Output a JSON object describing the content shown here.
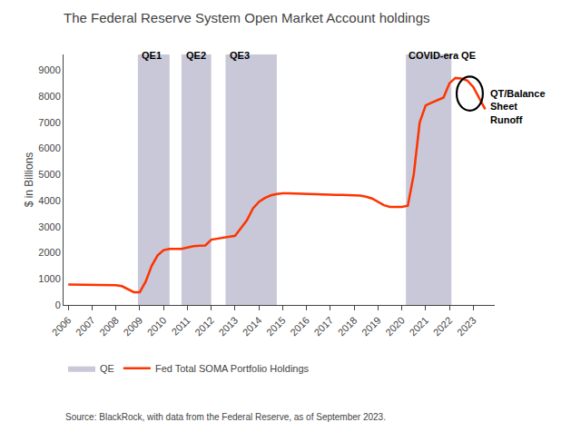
{
  "chart_data": {
    "type": "line",
    "title": "The Federal Reserve System Open Market Account holdings",
    "ylabel": "$ in Billions",
    "source": "Source: BlackRock, with data from the Federal Reserve, as of September 2023.",
    "x": [
      2006.0,
      2006.25,
      2006.5,
      2006.75,
      2007.0,
      2007.25,
      2007.5,
      2007.75,
      2008.0,
      2008.25,
      2008.5,
      2008.75,
      2009.0,
      2009.25,
      2009.5,
      2009.75,
      2010.0,
      2010.25,
      2010.5,
      2010.75,
      2011.0,
      2011.25,
      2011.5,
      2011.75,
      2012.0,
      2012.25,
      2012.5,
      2012.75,
      2013.0,
      2013.25,
      2013.5,
      2013.75,
      2014.0,
      2014.25,
      2014.5,
      2014.75,
      2015.0,
      2015.25,
      2015.5,
      2015.75,
      2016.0,
      2016.25,
      2016.5,
      2016.75,
      2017.0,
      2017.25,
      2017.5,
      2017.75,
      2018.0,
      2018.25,
      2018.5,
      2018.75,
      2019.0,
      2019.25,
      2019.5,
      2019.75,
      2020.0,
      2020.25,
      2020.5,
      2020.75,
      2021.0,
      2021.25,
      2021.5,
      2021.75,
      2022.0,
      2022.25,
      2022.5,
      2022.75,
      2023.0,
      2023.5
    ],
    "series": [
      {
        "name": "Fed Total SOMA Portfolio Holdings",
        "color": "#FF3300",
        "values": [
          780,
          780,
          775,
          775,
          770,
          760,
          760,
          765,
          760,
          720,
          600,
          490,
          490,
          900,
          1500,
          1900,
          2100,
          2150,
          2150,
          2150,
          2200,
          2250,
          2270,
          2280,
          2500,
          2540,
          2580,
          2600,
          2650,
          2950,
          3250,
          3700,
          3950,
          4100,
          4200,
          4250,
          4280,
          4280,
          4270,
          4260,
          4250,
          4240,
          4230,
          4220,
          4220,
          4220,
          4220,
          4220,
          4200,
          4190,
          4150,
          4080,
          3950,
          3820,
          3760,
          3760,
          3760,
          3800,
          5000,
          7000,
          7650,
          7750,
          7850,
          7950,
          8500,
          8700,
          8680,
          8600,
          8350,
          7500
        ]
      }
    ],
    "shaded_regions": {
      "name": "QE",
      "color": "#C8C8D8",
      "periods": [
        [
          2008.92,
          2010.25
        ],
        [
          2010.75,
          2012.0
        ],
        [
          2012.6,
          2014.75
        ],
        [
          2020.17,
          2022.08
        ]
      ]
    },
    "annotations": [
      {
        "text": "QE1",
        "x": 2009.0,
        "y": 9300
      },
      {
        "text": "QE2",
        "x": 2010.85,
        "y": 9300
      },
      {
        "text": "QE3",
        "x": 2012.7,
        "y": 9300
      },
      {
        "text": "COVID-era QE",
        "x": 2020.2,
        "y": 9300
      }
    ],
    "ellipse": {
      "x": 2022.85,
      "y": 8100,
      "width": 1.1,
      "height": 1300,
      "text": "QT/Balance\nSheet\nRunoff"
    },
    "xlim": [
      2005.8,
      2023.9
    ],
    "ylim": [
      0,
      9600
    ],
    "yticks": [
      0,
      1000,
      2000,
      3000,
      4000,
      5000,
      6000,
      7000,
      8000,
      9000
    ],
    "xticks": [
      2006,
      2007,
      2008,
      2009,
      2010,
      2011,
      2012,
      2013,
      2014,
      2015,
      2016,
      2017,
      2018,
      2019,
      2020,
      2021,
      2022,
      2023
    ],
    "grid": false,
    "legend": "bottom"
  }
}
